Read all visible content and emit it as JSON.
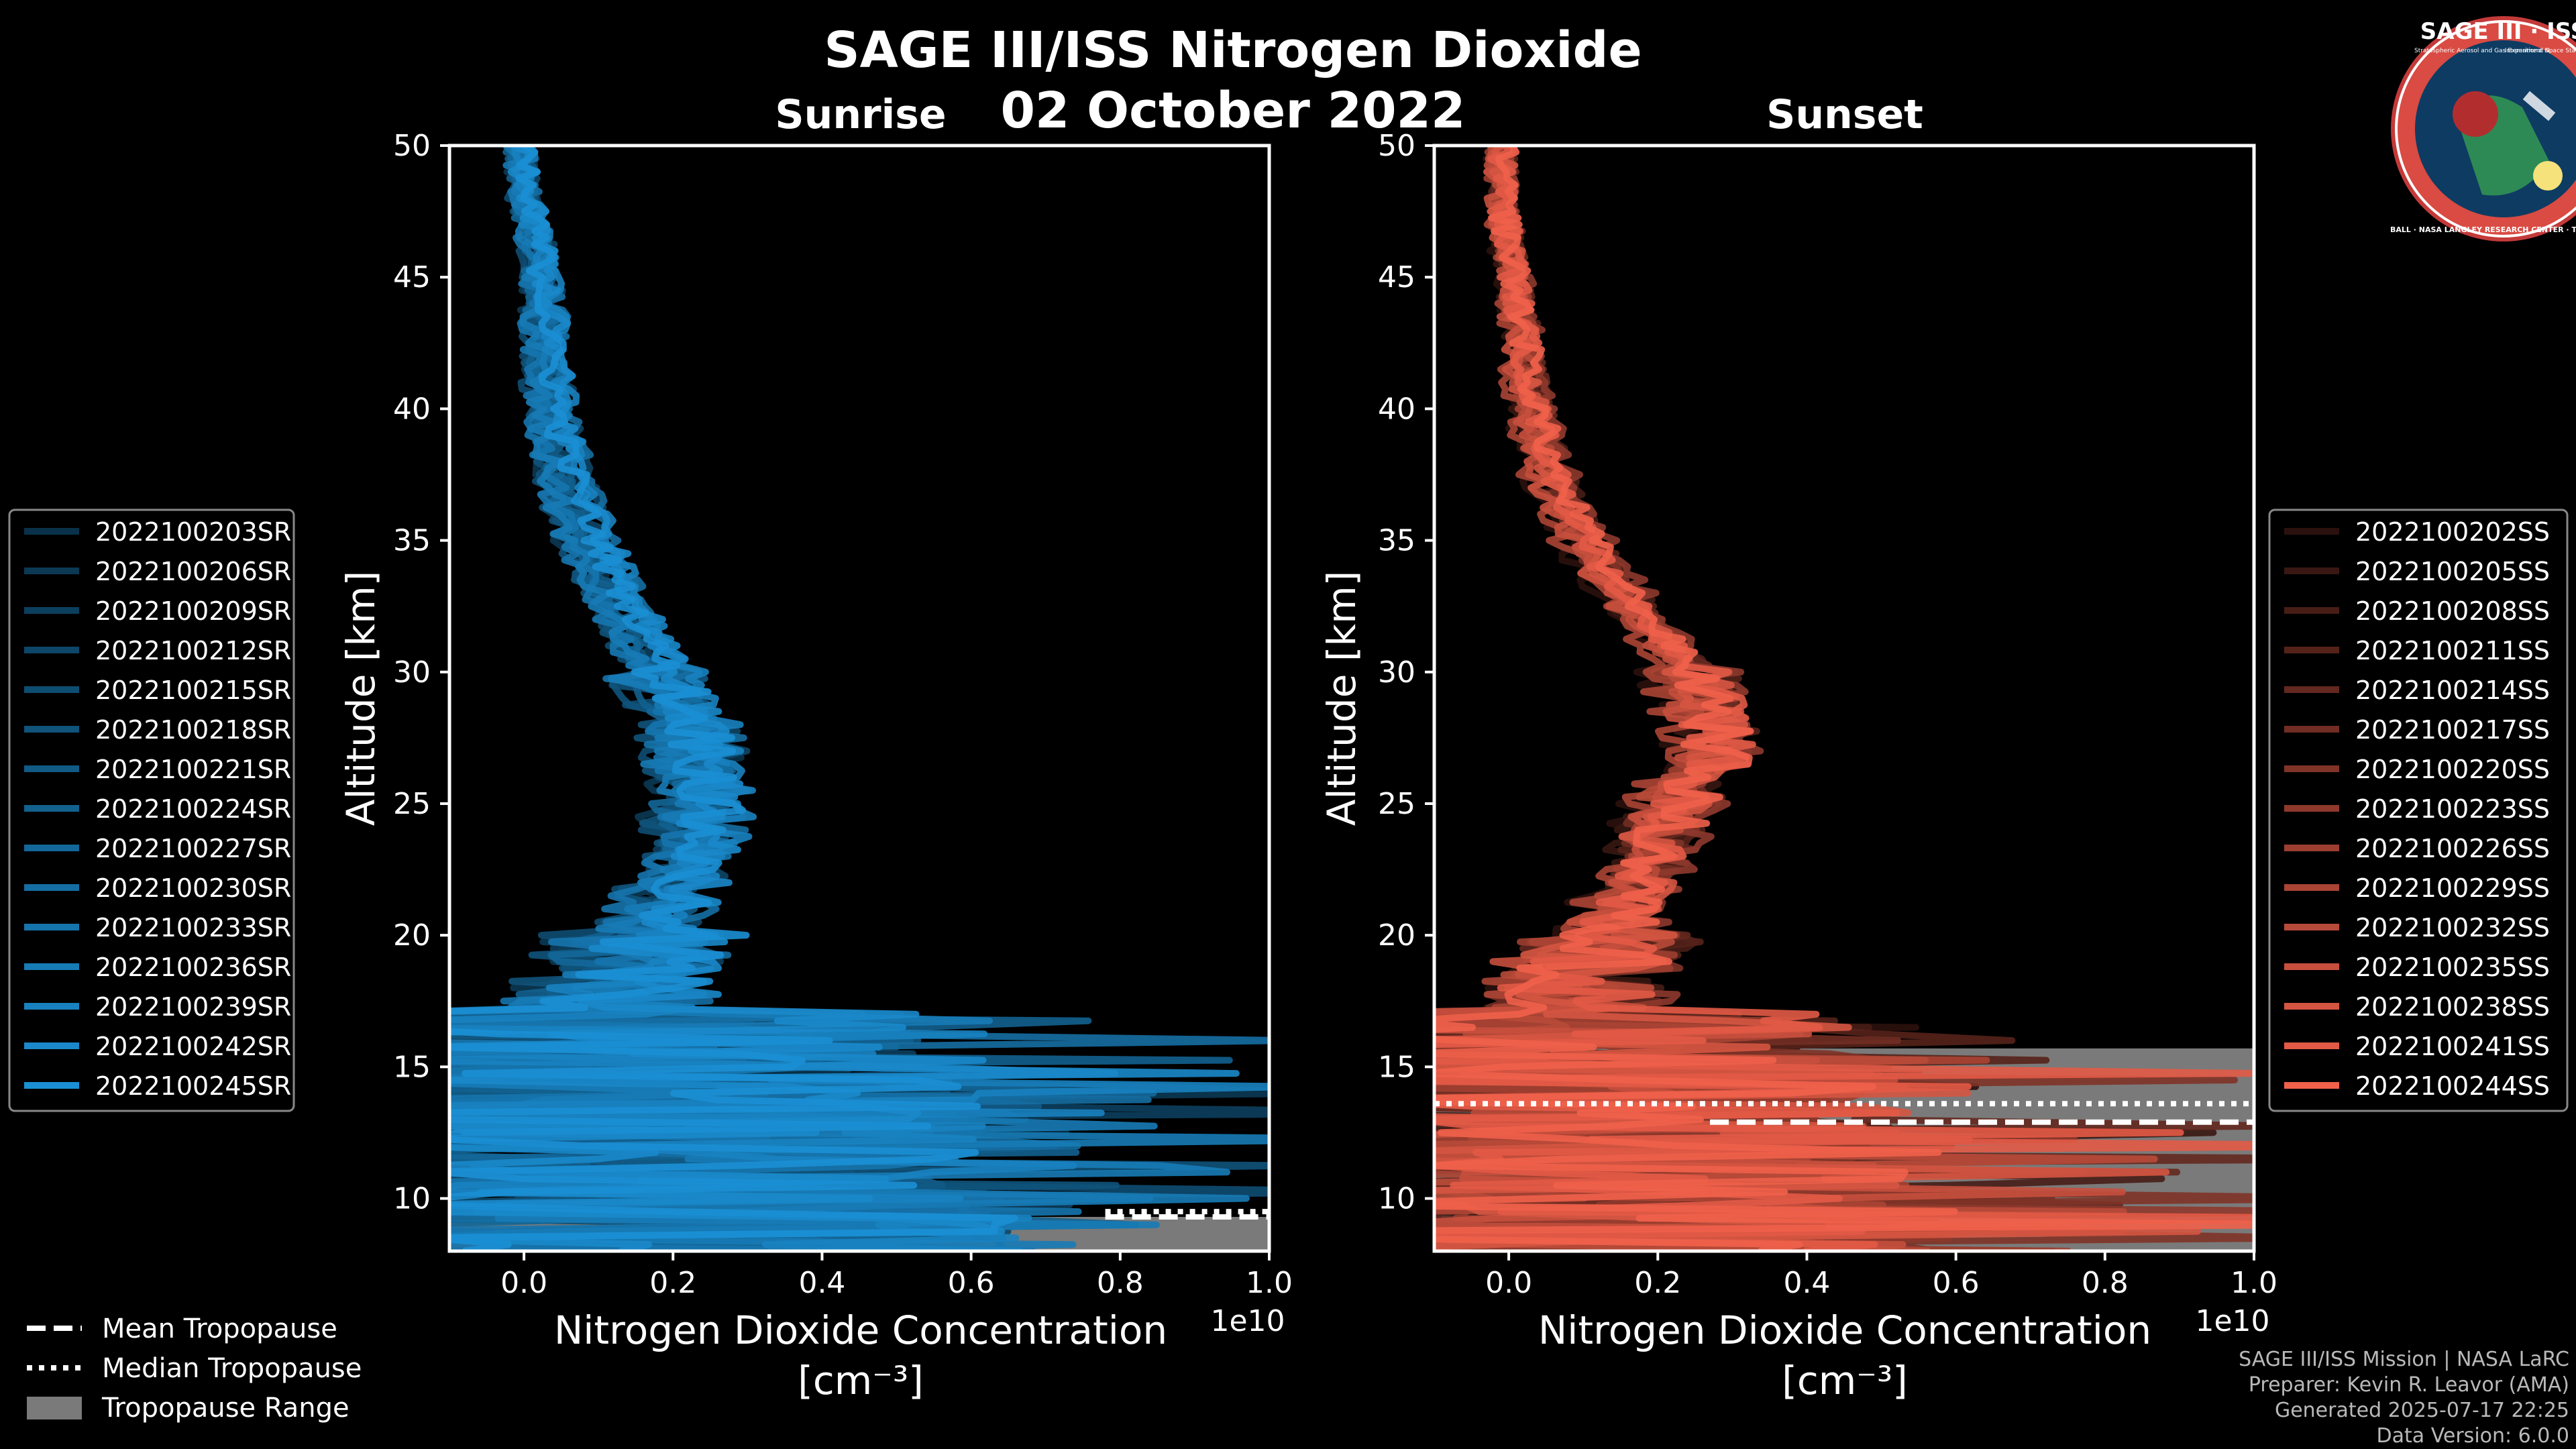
{
  "header": {
    "title": "SAGE III/ISS Nitrogen Dioxide",
    "date": "02 October 2022"
  },
  "logo": {
    "text": "SAGE III · ISS",
    "small_text": "Stratospheric Aerosol and Gas Experiment III",
    "small_text2": "International Space Station",
    "ring_text": "BALL · NASA LANGLEY RESEARCH CENTER · TAS-I · ESA"
  },
  "footer": {
    "line1": "SAGE III/ISS Mission | NASA LaRC",
    "line2": "Preparer: Kevin R. Leavor (AMA)",
    "line3": "Generated 2025-07-17 22:25",
    "line4": "Data Version: 6.0.0"
  },
  "tropo_legend": [
    {
      "label": "Mean Tropopause",
      "style": "dashed"
    },
    {
      "label": "Median Tropopause",
      "style": "dotted"
    },
    {
      "label": "Tropopause Range",
      "style": "patch"
    }
  ],
  "colors": {
    "background": "#000000",
    "sunrise": "#1b8fd4",
    "sunset": "#f0604a",
    "tropopause_range": "#7a7a7a"
  },
  "chart_data": [
    {
      "type": "line",
      "title": "Sunrise",
      "xlabel": "Nitrogen Dioxide Concentration",
      "xlabel_unit": "[cm⁻³]",
      "ylabel": "Altitude [km]",
      "xlim": [
        -0.1,
        1.0
      ],
      "ylim": [
        8,
        50
      ],
      "x_scale_label": "1e10",
      "xticks": [
        0.0,
        0.2,
        0.4,
        0.6,
        0.8,
        1.0
      ],
      "xtick_labels": [
        "0.0",
        "0.2",
        "0.4",
        "0.6",
        "0.8",
        "1.0"
      ],
      "yticks": [
        10,
        15,
        20,
        25,
        30,
        35,
        40,
        45,
        50
      ],
      "ytick_labels": [
        "10",
        "15",
        "20",
        "25",
        "30",
        "35",
        "40",
        "45",
        "50"
      ],
      "tropopause": {
        "mean": 9.3,
        "median": 9.5,
        "range": [
          8.0,
          9.3
        ]
      },
      "series_names": [
        "2022100203SR",
        "2022100206SR",
        "2022100209SR",
        "2022100212SR",
        "2022100215SR",
        "2022100218SR",
        "2022100221SR",
        "2022100224SR",
        "2022100227SR",
        "2022100230SR",
        "2022100233SR",
        "2022100236SR",
        "2022100239SR",
        "2022100242SR",
        "2022100245SR"
      ],
      "mean_profile": {
        "altitude": [
          8,
          10,
          12,
          14,
          15,
          16,
          17,
          18,
          19,
          20,
          21,
          22,
          23,
          24,
          25,
          26,
          27,
          28,
          29,
          30,
          31,
          32,
          33,
          34,
          35,
          36,
          37,
          38,
          39,
          40,
          42,
          44,
          46,
          48,
          50
        ],
        "no2": [
          0.22,
          0.2,
          0.18,
          0.17,
          0.15,
          0.12,
          0.1,
          0.12,
          0.15,
          0.17,
          0.18,
          0.2,
          0.22,
          0.23,
          0.23,
          0.24,
          0.23,
          0.22,
          0.2,
          0.18,
          0.16,
          0.14,
          0.12,
          0.1,
          0.085,
          0.07,
          0.06,
          0.05,
          0.04,
          0.035,
          0.03,
          0.025,
          0.02,
          0.0,
          -0.005
        ]
      }
    },
    {
      "type": "line",
      "title": "Sunset",
      "xlabel": "Nitrogen Dioxide Concentration",
      "xlabel_unit": "[cm⁻³]",
      "ylabel": "Altitude [km]",
      "xlim": [
        -0.1,
        1.0
      ],
      "ylim": [
        8,
        50
      ],
      "x_scale_label": "1e10",
      "xticks": [
        0.0,
        0.2,
        0.4,
        0.6,
        0.8,
        1.0
      ],
      "xtick_labels": [
        "0.0",
        "0.2",
        "0.4",
        "0.6",
        "0.8",
        "1.0"
      ],
      "yticks": [
        10,
        15,
        20,
        25,
        30,
        35,
        40,
        45,
        50
      ],
      "ytick_labels": [
        "10",
        "15",
        "20",
        "25",
        "30",
        "35",
        "40",
        "45",
        "50"
      ],
      "tropopause": {
        "mean": 12.9,
        "median": 13.6,
        "range": [
          8.0,
          15.7
        ]
      },
      "series_names": [
        "2022100202SS",
        "2022100205SS",
        "2022100208SS",
        "2022100211SS",
        "2022100214SS",
        "2022100217SS",
        "2022100220SS",
        "2022100223SS",
        "2022100226SS",
        "2022100229SS",
        "2022100232SS",
        "2022100235SS",
        "2022100238SS",
        "2022100241SS",
        "2022100244SS"
      ],
      "mean_profile": {
        "altitude": [
          8,
          10,
          12,
          14,
          15,
          16,
          17,
          18,
          19,
          20,
          21,
          22,
          23,
          24,
          25,
          26,
          27,
          28,
          29,
          30,
          31,
          32,
          33,
          34,
          35,
          36,
          37,
          38,
          39,
          40,
          42,
          44,
          46,
          48,
          50
        ],
        "no2": [
          0.15,
          0.13,
          0.12,
          0.11,
          0.1,
          0.08,
          0.07,
          0.09,
          0.11,
          0.13,
          0.15,
          0.17,
          0.18,
          0.2,
          0.22,
          0.25,
          0.27,
          0.27,
          0.26,
          0.24,
          0.21,
          0.18,
          0.15,
          0.12,
          0.1,
          0.08,
          0.06,
          0.05,
          0.04,
          0.03,
          0.02,
          0.01,
          0.0,
          -0.01,
          -0.01
        ]
      }
    }
  ]
}
